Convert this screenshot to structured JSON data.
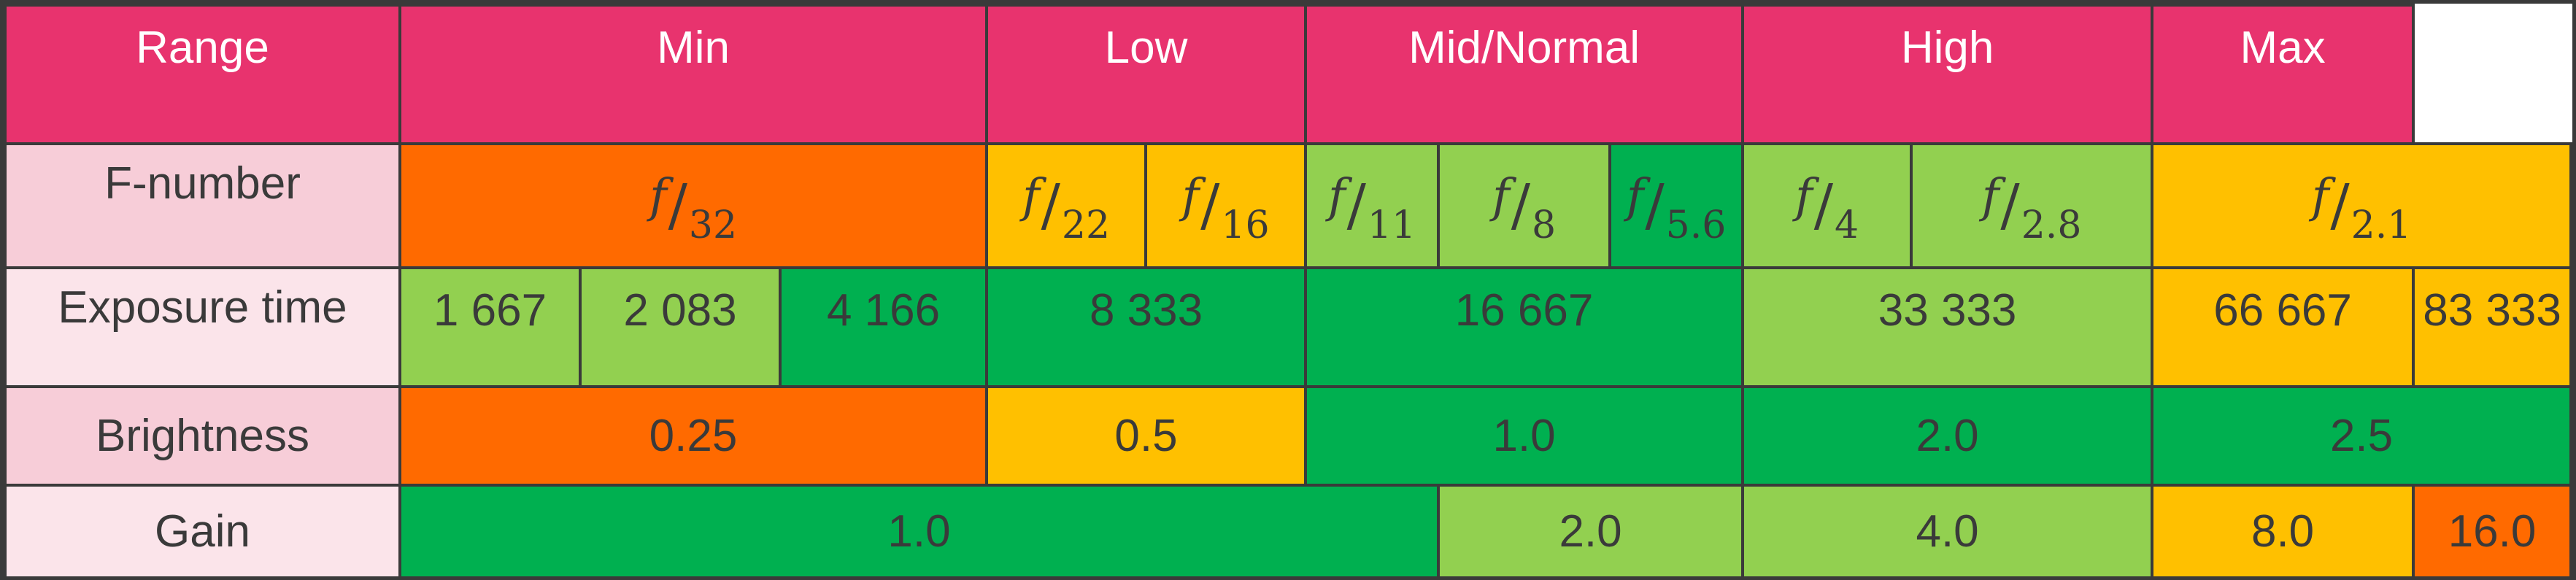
{
  "colors": {
    "header_pink": "#e8336e",
    "label_pink_dark": "#f7cdd8",
    "label_pink_light": "#fbe4ea",
    "orange": "#ff6a00",
    "yellow": "#ffc000",
    "light_green": "#92d050",
    "green": "#00b050",
    "border": "#3a3a3a"
  },
  "header": {
    "range": "Range",
    "min": "Min",
    "low": "Low",
    "mid": "Mid/Normal",
    "high": "High",
    "max": "Max"
  },
  "rows": {
    "fnumber": {
      "label": "F-number",
      "cells": [
        {
          "f": "f",
          "den": "32"
        },
        {
          "f": "f",
          "den": "22"
        },
        {
          "f": "f",
          "den": "16"
        },
        {
          "f": "f",
          "den": "11"
        },
        {
          "f": "f",
          "den": "8"
        },
        {
          "f": "f",
          "den": "5.6"
        },
        {
          "f": "f",
          "den": "4"
        },
        {
          "f": "f",
          "den": "2.8"
        },
        {
          "f": "f",
          "den": "2.1"
        }
      ]
    },
    "exposure": {
      "label": "Exposure time",
      "cells": [
        "1 667",
        "2 083",
        "4 166",
        "8 333",
        "16 667",
        "33 333",
        "66 667",
        "83 333"
      ]
    },
    "brightness": {
      "label": "Brightness",
      "cells": [
        "0.25",
        "0.5",
        "1.0",
        "2.0",
        "2.5"
      ]
    },
    "gain": {
      "label": "Gain",
      "cells": [
        "1.0",
        "2.0",
        "4.0",
        "8.0",
        "16.0"
      ]
    }
  }
}
